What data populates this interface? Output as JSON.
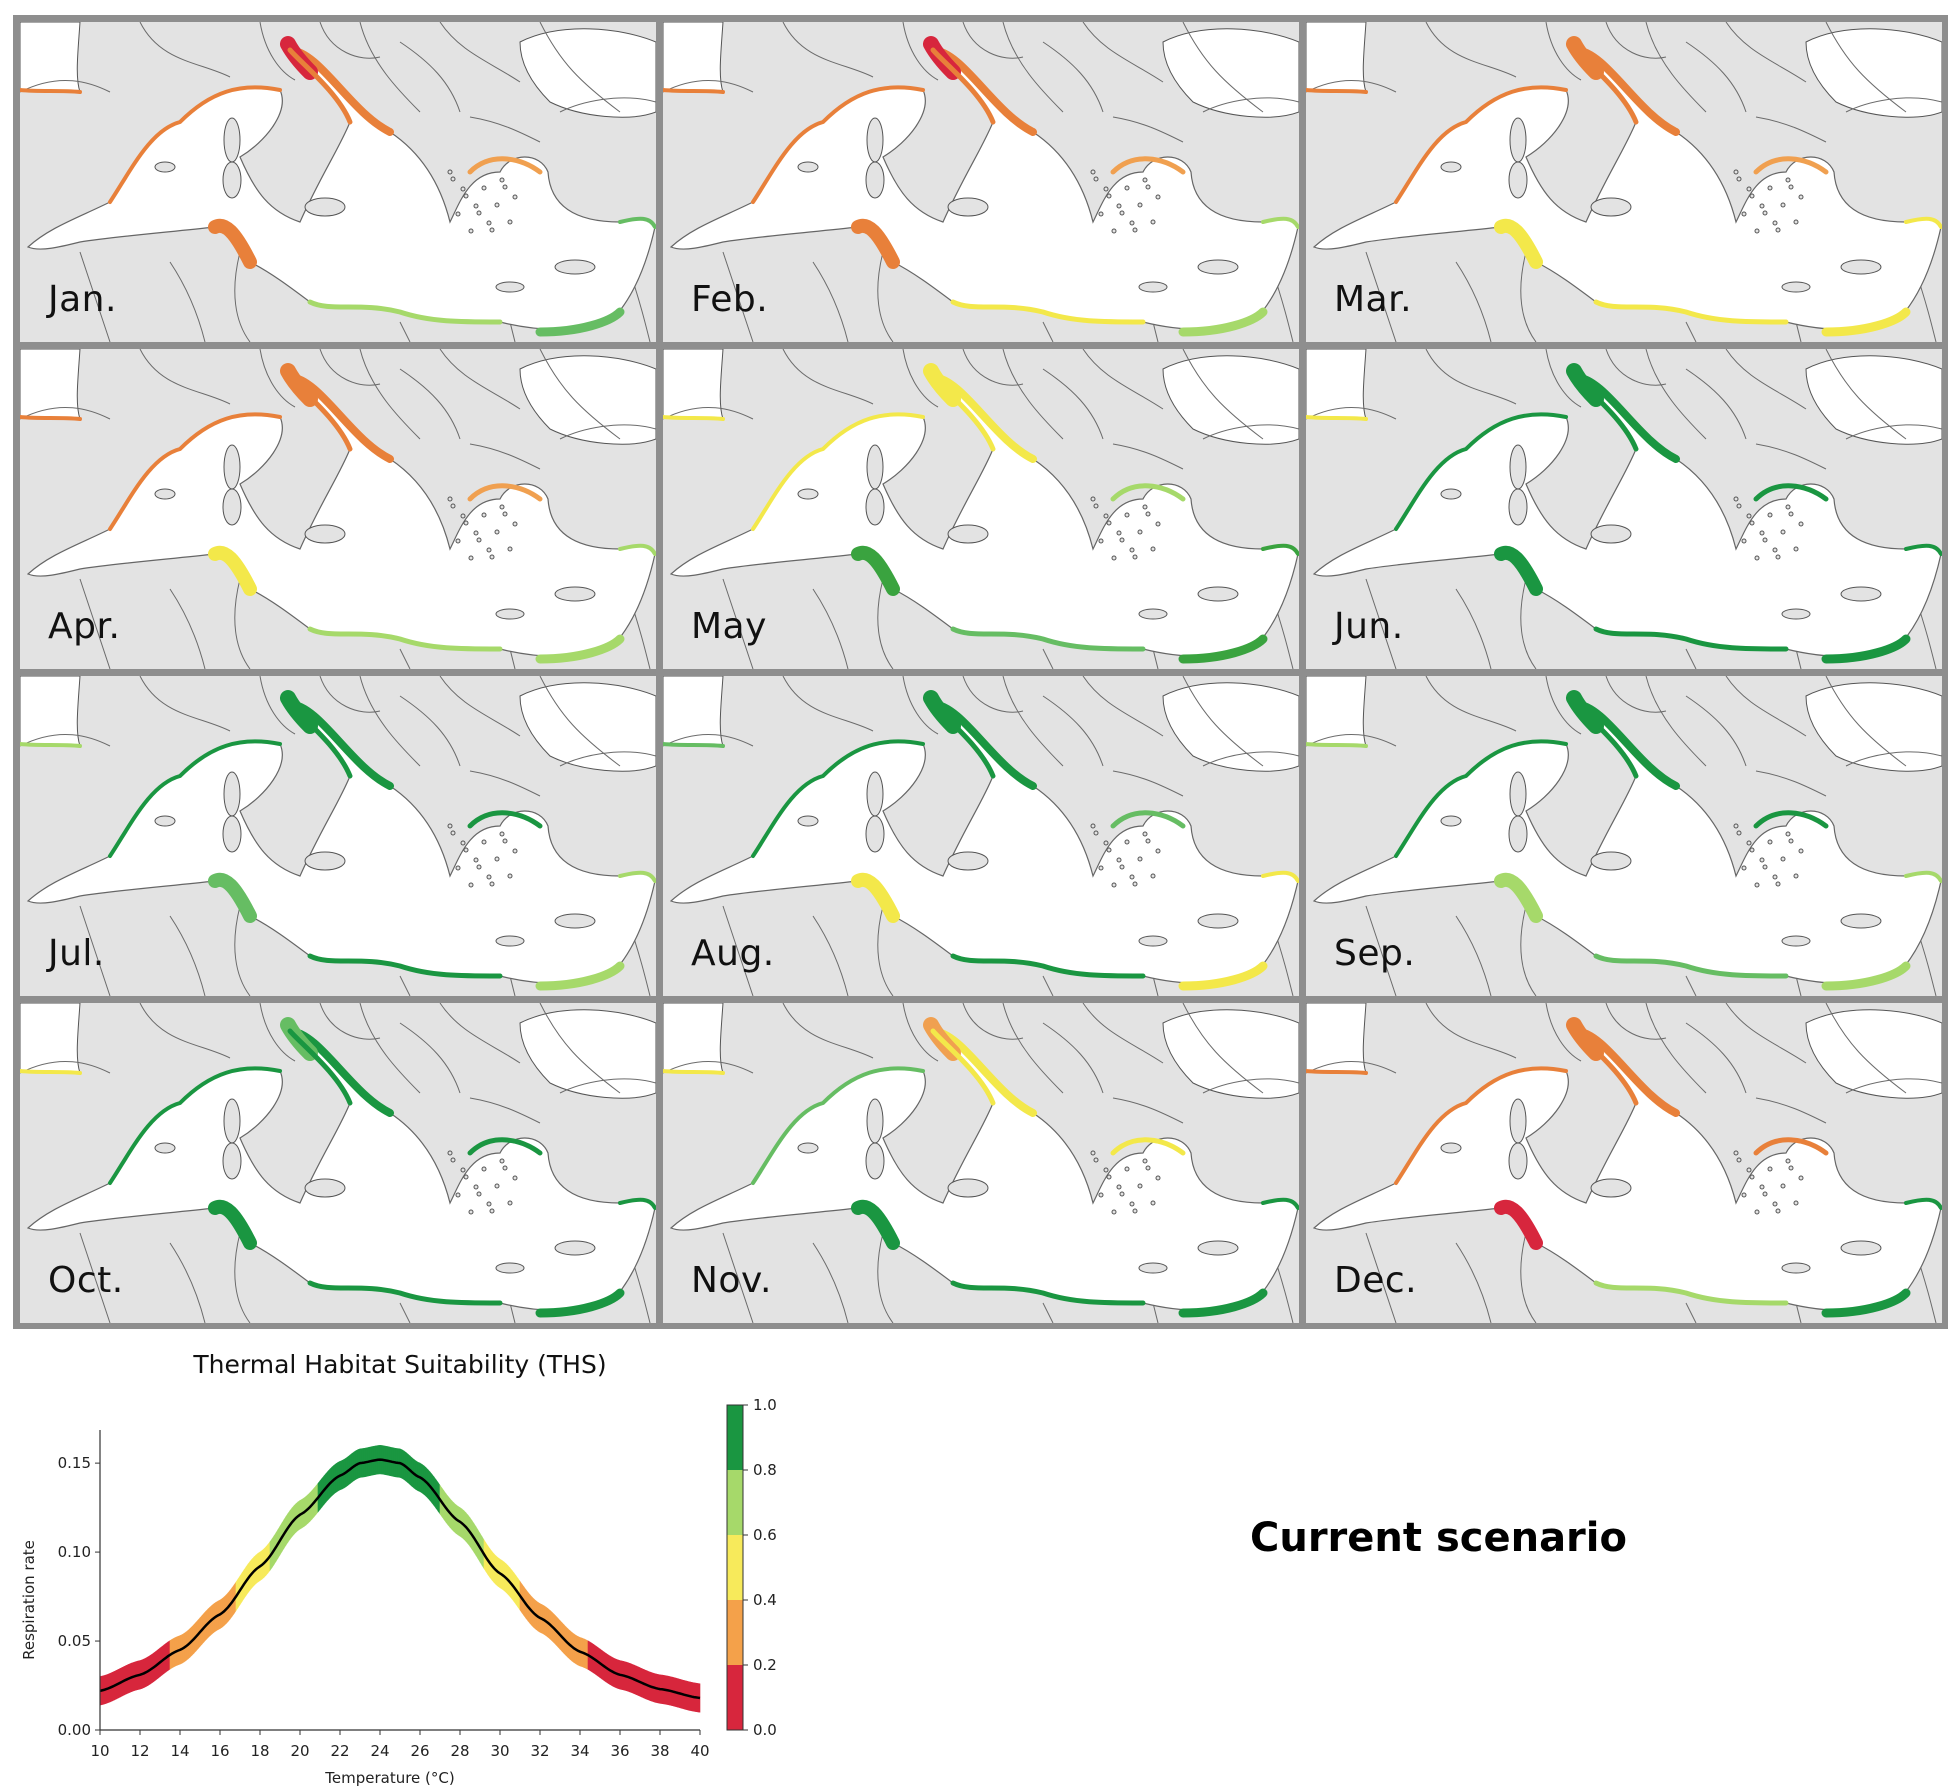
{
  "months": [
    "Jan.",
    "Feb.",
    "Mar.",
    "Apr.",
    "May",
    "Jun.",
    "Jul.",
    "Aug.",
    "Sep.",
    "Oct.",
    "Nov.",
    "Dec."
  ],
  "month_styles": [
    {
      "north": "#e8803a",
      "adriatic": "#e8803a",
      "adriatic_top": "#d7263d",
      "tunisia": "#e8803a",
      "africa": "#a6d96a",
      "levant": "#66bd63",
      "aegean": "#f0a050",
      "iberia": "#e8803a"
    },
    {
      "north": "#e8803a",
      "adriatic": "#e8803a",
      "adriatic_top": "#d7263d",
      "tunisia": "#e8803a",
      "africa": "#f3e84a",
      "levant": "#a6d96a",
      "aegean": "#f0a050",
      "iberia": "#e8803a"
    },
    {
      "north": "#e8803a",
      "adriatic": "#e8803a",
      "adriatic_top": "#e8803a",
      "tunisia": "#f3e84a",
      "africa": "#f3e84a",
      "levant": "#f3e84a",
      "aegean": "#f0a050",
      "iberia": "#e8803a"
    },
    {
      "north": "#e8803a",
      "adriatic": "#e8803a",
      "adriatic_top": "#e8803a",
      "tunisia": "#f3e84a",
      "africa": "#a6d96a",
      "levant": "#a6d96a",
      "aegean": "#f0a050",
      "iberia": "#e8803a"
    },
    {
      "north": "#f3e84a",
      "adriatic": "#f3e84a",
      "adriatic_top": "#f3e84a",
      "tunisia": "#3aa33f",
      "africa": "#66bd63",
      "levant": "#3aa33f",
      "aegean": "#a6d96a",
      "iberia": "#f3e84a"
    },
    {
      "north": "#1a9641",
      "adriatic": "#1a9641",
      "adriatic_top": "#1a9641",
      "tunisia": "#1a9641",
      "africa": "#1a9641",
      "levant": "#1a9641",
      "aegean": "#1a9641",
      "iberia": "#f3e84a"
    },
    {
      "north": "#1a9641",
      "adriatic": "#1a9641",
      "adriatic_top": "#1a9641",
      "tunisia": "#66bd63",
      "africa": "#1a9641",
      "levant": "#a6d96a",
      "aegean": "#1a9641",
      "iberia": "#a6d96a"
    },
    {
      "north": "#1a9641",
      "adriatic": "#1a9641",
      "adriatic_top": "#1a9641",
      "tunisia": "#f3e84a",
      "africa": "#1a9641",
      "levant": "#f3e84a",
      "aegean": "#66bd63",
      "iberia": "#66bd63"
    },
    {
      "north": "#1a9641",
      "adriatic": "#1a9641",
      "adriatic_top": "#1a9641",
      "tunisia": "#a6d96a",
      "africa": "#66bd63",
      "levant": "#a6d96a",
      "aegean": "#1a9641",
      "iberia": "#a6d96a"
    },
    {
      "north": "#1a9641",
      "adriatic": "#1a9641",
      "adriatic_top": "#66bd63",
      "tunisia": "#1a9641",
      "africa": "#1a9641",
      "levant": "#1a9641",
      "aegean": "#1a9641",
      "iberia": "#f3e84a"
    },
    {
      "north": "#66bd63",
      "adriatic": "#f3e84a",
      "adriatic_top": "#f0a050",
      "tunisia": "#1a9641",
      "africa": "#1a9641",
      "levant": "#1a9641",
      "aegean": "#f3e84a",
      "iberia": "#f3e84a"
    },
    {
      "north": "#e8803a",
      "adriatic": "#e8803a",
      "adriatic_top": "#e8803a",
      "tunisia": "#d7263d",
      "africa": "#a6d96a",
      "levant": "#1a9641",
      "aegean": "#e8803a",
      "iberia": "#e8803a"
    }
  ],
  "chart_data": {
    "type": "line",
    "title": "Thermal Habitat Suitability (THS)",
    "xlabel": "Temperature (°C)",
    "ylabel": "Respiration rate",
    "x_ticks": [
      10,
      12,
      14,
      16,
      18,
      20,
      22,
      24,
      26,
      28,
      30,
      32,
      34,
      36,
      38,
      40
    ],
    "y_ticks": [
      "0.00",
      "0.05",
      "0.10",
      "0.15"
    ],
    "xlim": [
      10,
      40
    ],
    "ylim": [
      0,
      0.163
    ],
    "series": [
      {
        "x": [
          10,
          12,
          14,
          16,
          18,
          20,
          22,
          23,
          24,
          25,
          26,
          28,
          30,
          32,
          34,
          36,
          38,
          40
        ],
        "y": [
          0.022,
          0.031,
          0.045,
          0.065,
          0.092,
          0.121,
          0.143,
          0.15,
          0.152,
          0.15,
          0.142,
          0.117,
          0.088,
          0.063,
          0.044,
          0.031,
          0.023,
          0.018
        ],
        "band": 0.008
      }
    ],
    "colorbar": {
      "ticks": [
        "0.0",
        "0.2",
        "0.4",
        "0.6",
        "0.8",
        "1.0"
      ],
      "colors": [
        "#d7263d",
        "#f4a14a",
        "#f7ea5b",
        "#a6d96a",
        "#1a9641"
      ]
    },
    "band_thresholds": [
      0.042,
      0.075,
      0.098,
      0.13
    ]
  },
  "scenario_label": "Current scenario"
}
